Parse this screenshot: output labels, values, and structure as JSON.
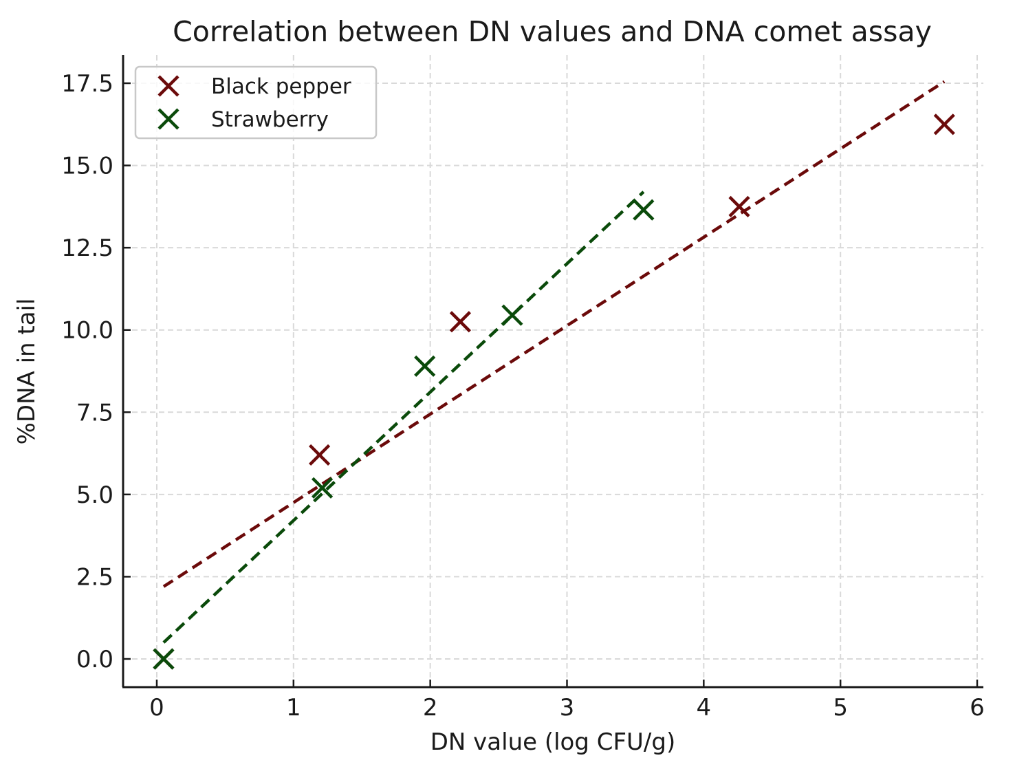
{
  "chart_data": {
    "type": "scatter",
    "title": "Correlation between DN values and DNA comet assay",
    "xlabel": "DN value (log CFU/g)",
    "ylabel": "%DNA in tail",
    "xlim": [
      -0.25,
      6.05
    ],
    "ylim": [
      -0.8,
      18.4
    ],
    "xticks": [
      0,
      1,
      2,
      3,
      4,
      5,
      6
    ],
    "xtick_labels": [
      "0",
      "1",
      "2",
      "3",
      "4",
      "5",
      "6"
    ],
    "yticks": [
      0,
      2.5,
      5,
      7.5,
      10,
      12.5,
      15,
      17.5
    ],
    "ytick_labels": [
      "0.0",
      "2.5",
      "5.0",
      "7.5",
      "10.0",
      "12.5",
      "15.0",
      "17.5"
    ],
    "grid": true,
    "legend_position": "top-left",
    "series": [
      {
        "name": "Black pepper",
        "color": "#6b0a0a",
        "marker": "x",
        "x": [
          0.05,
          1.19,
          2.22,
          4.26,
          5.76
        ],
        "y": [
          0.0,
          6.2,
          10.25,
          13.75,
          16.25
        ],
        "trendline": {
          "x": [
            0.05,
            5.76
          ],
          "y": [
            2.2,
            17.55
          ],
          "style": "dashed"
        }
      },
      {
        "name": "Strawberry",
        "color": "#0a4a0a",
        "marker": "x",
        "x": [
          0.05,
          1.21,
          1.96,
          2.6,
          3.56
        ],
        "y": [
          0.0,
          5.2,
          8.9,
          10.45,
          13.65
        ],
        "trendline": {
          "x": [
            0.05,
            3.56
          ],
          "y": [
            0.5,
            14.2
          ],
          "style": "dashed"
        }
      }
    ]
  }
}
